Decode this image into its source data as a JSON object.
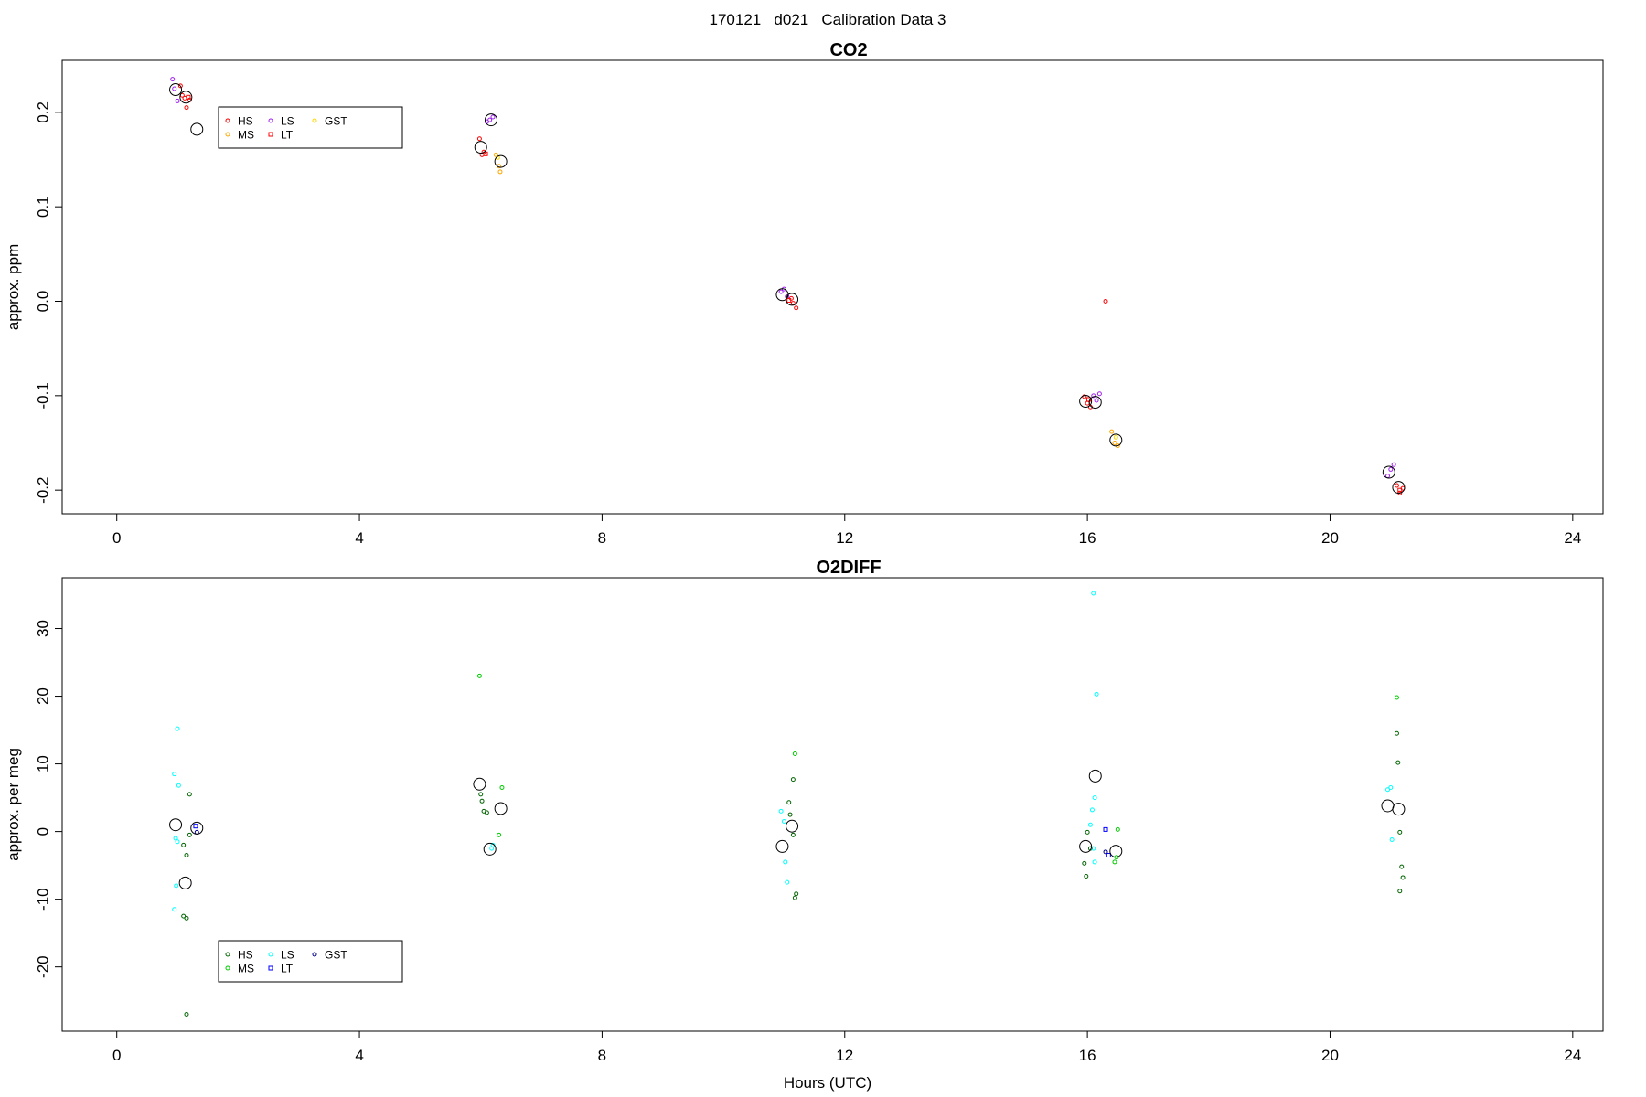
{
  "suptitle": "170121   d021   Calibration Data 3",
  "chart_data": [
    {
      "type": "scatter",
      "title": "CO2",
      "xlabel": "",
      "ylabel": "approx. ppm",
      "xlim": [
        -0.9,
        24.5
      ],
      "ylim": [
        -0.225,
        0.255
      ],
      "xticks": [
        0,
        4,
        8,
        12,
        16,
        20,
        24
      ],
      "yticks": [
        -0.2,
        -0.1,
        0.0,
        0.1,
        0.2
      ],
      "ytick_labels": [
        "-0.2",
        "-0.1",
        "0.0",
        "0.1",
        "0.2"
      ],
      "legend": {
        "position": "top-left",
        "entries": [
          {
            "label": "HS",
            "color": "#ff0000"
          },
          {
            "label": "MS",
            "color": "#ffa500"
          },
          {
            "label": "LS",
            "color": "#a020f0"
          },
          {
            "label": "LT",
            "color": "#ff0000"
          },
          {
            "label": "GST",
            "color": "#ffd700"
          }
        ]
      },
      "series": [
        {
          "name": "HS",
          "color": "#ff0000",
          "marker": "circle",
          "points": [
            [
              1.05,
              0.228
            ],
            [
              1.12,
              0.215
            ],
            [
              1.2,
              0.213
            ],
            [
              1.15,
              0.205
            ],
            [
              1.08,
              0.218
            ],
            [
              5.98,
              0.172
            ],
            [
              6.02,
              0.155
            ],
            [
              6.05,
              0.158
            ],
            [
              11.15,
              -0.002
            ],
            [
              11.2,
              -0.007
            ],
            [
              11.12,
              0.003
            ],
            [
              15.95,
              -0.101
            ],
            [
              16.0,
              -0.108
            ],
            [
              16.05,
              -0.112
            ],
            [
              16.3,
              0.0
            ],
            [
              21.1,
              -0.195
            ],
            [
              21.15,
              -0.203
            ],
            [
              21.2,
              -0.198
            ]
          ]
        },
        {
          "name": "MS",
          "color": "#ffa500",
          "marker": "circle",
          "points": [
            [
              6.25,
              0.155
            ],
            [
              6.3,
              0.143
            ],
            [
              6.32,
              0.137
            ],
            [
              16.4,
              -0.138
            ],
            [
              16.45,
              -0.15
            ],
            [
              16.5,
              -0.153
            ]
          ]
        },
        {
          "name": "LS",
          "color": "#a020f0",
          "marker": "circle",
          "points": [
            [
              0.92,
              0.235
            ],
            [
              0.95,
              0.225
            ],
            [
              1.0,
              0.212
            ],
            [
              6.1,
              0.19
            ],
            [
              6.15,
              0.192
            ],
            [
              6.2,
              0.195
            ],
            [
              10.95,
              0.01
            ],
            [
              11.0,
              0.013
            ],
            [
              11.05,
              0.005
            ],
            [
              16.1,
              -0.1
            ],
            [
              16.15,
              -0.105
            ],
            [
              16.2,
              -0.098
            ],
            [
              20.95,
              -0.185
            ],
            [
              21.0,
              -0.178
            ],
            [
              21.05,
              -0.173
            ]
          ]
        },
        {
          "name": "LT",
          "color": "#ff0000",
          "marker": "square",
          "points": [
            [
              1.18,
              0.216
            ],
            [
              6.08,
              0.156
            ],
            [
              11.08,
              0.001
            ],
            [
              16.02,
              -0.104
            ],
            [
              21.15,
              -0.2
            ]
          ]
        },
        {
          "name": "GST",
          "color": "#ffd700",
          "marker": "circle",
          "points": [
            [
              6.28,
              0.152
            ],
            [
              16.47,
              -0.144
            ]
          ]
        },
        {
          "name": "",
          "color": "#000000",
          "marker": "mean",
          "points": [
            [
              0.97,
              0.224
            ],
            [
              1.14,
              0.216
            ],
            [
              1.32,
              0.182
            ],
            [
              6.0,
              0.163
            ],
            [
              6.17,
              0.192
            ],
            [
              6.33,
              0.148
            ],
            [
              10.97,
              0.007
            ],
            [
              11.13,
              0.002
            ],
            [
              15.97,
              -0.106
            ],
            [
              16.13,
              -0.107
            ],
            [
              16.47,
              -0.147
            ],
            [
              20.97,
              -0.181
            ],
            [
              21.13,
              -0.197
            ]
          ]
        }
      ]
    },
    {
      "type": "scatter",
      "title": "O2DIFF",
      "xlabel": "Hours (UTC)",
      "ylabel": "approx. per meg",
      "xlim": [
        -0.9,
        24.5
      ],
      "ylim": [
        -29.5,
        37.5
      ],
      "xticks": [
        0,
        4,
        8,
        12,
        16,
        20,
        24
      ],
      "yticks": [
        -20,
        -10,
        0,
        10,
        20,
        30
      ],
      "ytick_labels": [
        "-20",
        "-10",
        "0",
        "10",
        "20",
        "30"
      ],
      "legend": {
        "position": "bottom-left",
        "entries": [
          {
            "label": "HS",
            "color": "#006400"
          },
          {
            "label": "MS",
            "color": "#00cd00"
          },
          {
            "label": "LS",
            "color": "#00ffff"
          },
          {
            "label": "LT",
            "color": "#0000ff"
          },
          {
            "label": "GST",
            "color": "#00008b"
          }
        ]
      },
      "series": [
        {
          "name": "HS",
          "color": "#006400",
          "marker": "circle",
          "points": [
            [
              1.1,
              -2.0
            ],
            [
              1.15,
              -3.5
            ],
            [
              1.2,
              -0.5
            ],
            [
              1.2,
              5.5
            ],
            [
              1.1,
              -12.5
            ],
            [
              1.15,
              -12.8
            ],
            [
              1.15,
              -27.0
            ],
            [
              6.0,
              5.5
            ],
            [
              6.05,
              3.0
            ],
            [
              6.1,
              2.8
            ],
            [
              6.02,
              4.5
            ],
            [
              11.1,
              2.5
            ],
            [
              11.15,
              -0.5
            ],
            [
              11.08,
              4.3
            ],
            [
              11.15,
              7.7
            ],
            [
              11.2,
              -9.2
            ],
            [
              11.18,
              -9.8
            ],
            [
              15.95,
              -4.7
            ],
            [
              15.98,
              -6.6
            ],
            [
              16.0,
              -0.1
            ],
            [
              16.05,
              -2.5
            ],
            [
              21.1,
              14.5
            ],
            [
              21.12,
              10.2
            ],
            [
              21.15,
              -0.1
            ],
            [
              21.18,
              -5.2
            ],
            [
              21.2,
              -6.8
            ],
            [
              21.15,
              -8.8
            ]
          ]
        },
        {
          "name": "MS",
          "color": "#00cd00",
          "marker": "circle",
          "points": [
            [
              5.98,
              23.0
            ],
            [
              6.35,
              6.5
            ],
            [
              6.3,
              -0.5
            ],
            [
              11.18,
              11.5
            ],
            [
              16.45,
              -4.5
            ],
            [
              16.48,
              -3.8
            ],
            [
              16.5,
              0.3
            ],
            [
              21.1,
              19.8
            ]
          ]
        },
        {
          "name": "LS",
          "color": "#00ffff",
          "marker": "circle",
          "points": [
            [
              1.0,
              15.2
            ],
            [
              0.95,
              8.5
            ],
            [
              1.02,
              6.8
            ],
            [
              0.97,
              -1.0
            ],
            [
              1.0,
              -1.5
            ],
            [
              0.98,
              -8.0
            ],
            [
              0.95,
              -11.5
            ],
            [
              6.18,
              -2.5
            ],
            [
              6.2,
              -2.0
            ],
            [
              10.95,
              3.0
            ],
            [
              11.0,
              1.5
            ],
            [
              11.02,
              -4.5
            ],
            [
              11.05,
              -7.5
            ],
            [
              16.1,
              35.2
            ],
            [
              16.15,
              20.3
            ],
            [
              16.12,
              5.0
            ],
            [
              16.08,
              3.2
            ],
            [
              16.05,
              1.0
            ],
            [
              16.1,
              -2.5
            ],
            [
              16.12,
              -4.5
            ],
            [
              20.95,
              6.2
            ],
            [
              21.0,
              6.5
            ],
            [
              21.02,
              -1.2
            ]
          ]
        },
        {
          "name": "LT",
          "color": "#0000ff",
          "marker": "square",
          "points": [
            [
              1.3,
              0.8
            ],
            [
              16.3,
              0.3
            ],
            [
              16.35,
              -3.5
            ]
          ]
        },
        {
          "name": "GST",
          "color": "#00008b",
          "marker": "circle",
          "points": [
            [
              1.32,
              -0.1
            ],
            [
              16.3,
              -3.0
            ]
          ]
        },
        {
          "name": "",
          "color": "#000000",
          "marker": "mean",
          "points": [
            [
              0.97,
              1.0
            ],
            [
              1.13,
              -7.6
            ],
            [
              1.32,
              0.5
            ],
            [
              5.98,
              7.0
            ],
            [
              6.15,
              -2.6
            ],
            [
              6.33,
              3.4
            ],
            [
              10.97,
              -2.2
            ],
            [
              11.13,
              0.8
            ],
            [
              15.97,
              -2.2
            ],
            [
              16.13,
              8.2
            ],
            [
              16.47,
              -2.9
            ],
            [
              20.95,
              3.8
            ],
            [
              21.13,
              3.3
            ]
          ]
        }
      ]
    }
  ]
}
